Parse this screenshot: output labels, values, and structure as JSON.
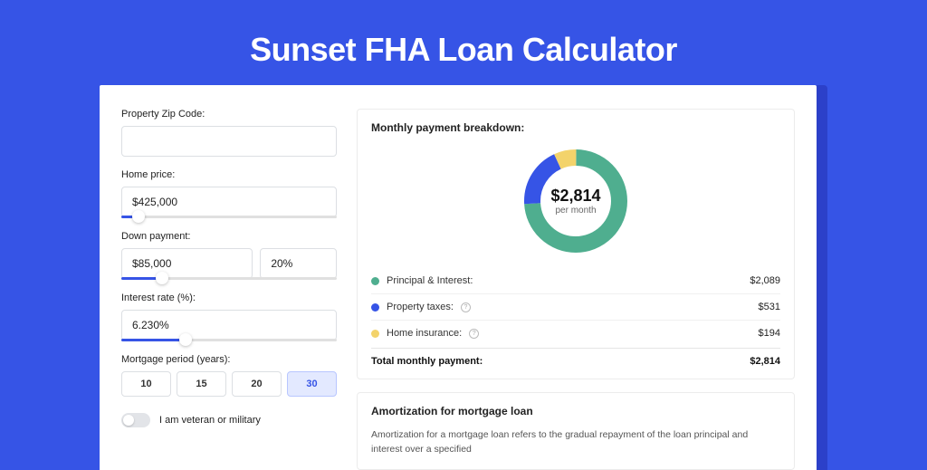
{
  "hero": {
    "title": "Sunset FHA Loan Calculator"
  },
  "form": {
    "zip": {
      "label": "Property Zip Code:",
      "value": ""
    },
    "home_price": {
      "label": "Home price:",
      "value": "$425,000",
      "slider_pct": 8
    },
    "down_payment": {
      "label": "Down payment:",
      "value": "$85,000",
      "pct": "20%",
      "slider_pct": 19
    },
    "interest": {
      "label": "Interest rate (%):",
      "value": "6.230%",
      "slider_pct": 30
    },
    "period": {
      "label": "Mortgage period (years):",
      "options": [
        "10",
        "15",
        "20",
        "30"
      ],
      "active_index": 3
    },
    "veteran": {
      "label": "I am veteran or military",
      "on": false
    }
  },
  "breakdown": {
    "title": "Monthly payment breakdown:",
    "donut": {
      "amount": "$2,814",
      "sub": "per month",
      "segments": [
        {
          "color": "#4fae8f",
          "pct": 74
        },
        {
          "color": "#3654e6",
          "pct": 19
        },
        {
          "color": "#f3d36b",
          "pct": 7
        }
      ],
      "stroke_width": 18
    },
    "items": [
      {
        "label": "Principal & Interest:",
        "value": "$2,089",
        "color": "#4fae8f",
        "info": false
      },
      {
        "label": "Property taxes:",
        "value": "$531",
        "color": "#3654e6",
        "info": true
      },
      {
        "label": "Home insurance:",
        "value": "$194",
        "color": "#f3d36b",
        "info": true
      }
    ],
    "total": {
      "label": "Total monthly payment:",
      "value": "$2,814"
    }
  },
  "amortization": {
    "title": "Amortization for mortgage loan",
    "body": "Amortization for a mortgage loan refers to the gradual repayment of the loan principal and interest over a specified"
  },
  "styling": {
    "page_bg": "#3654e6",
    "panel_shadow": "#2c40c9",
    "panel_bg": "#ffffff",
    "input_border": "#dcdfe3",
    "active_btn_bg": "#e3e9ff",
    "label_color": "#222222",
    "title_color": "#ffffff",
    "title_fontsize": 36
  }
}
